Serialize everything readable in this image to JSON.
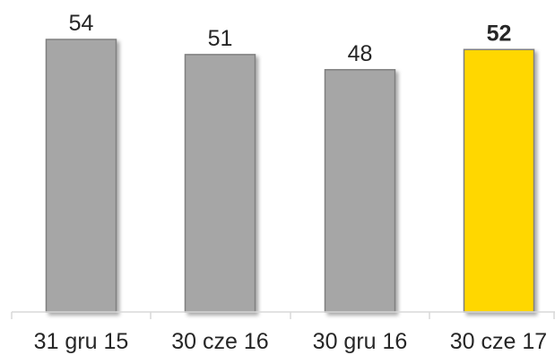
{
  "chart_data": {
    "type": "bar",
    "categories": [
      "31 gru 15",
      "30 cze 16",
      "30 gru 16",
      "30 cze 17"
    ],
    "values": [
      54,
      51,
      48,
      52
    ],
    "highlight_index": 3,
    "ylim": [
      0,
      56
    ],
    "grid": false,
    "legend": "none",
    "colors": {
      "bar": "#a6a6a6",
      "bar_stroke": "#808080",
      "highlight": "#ffd700",
      "highlight_stroke": "#808080",
      "axis": "#d9d9d9",
      "text": "#262626"
    }
  }
}
